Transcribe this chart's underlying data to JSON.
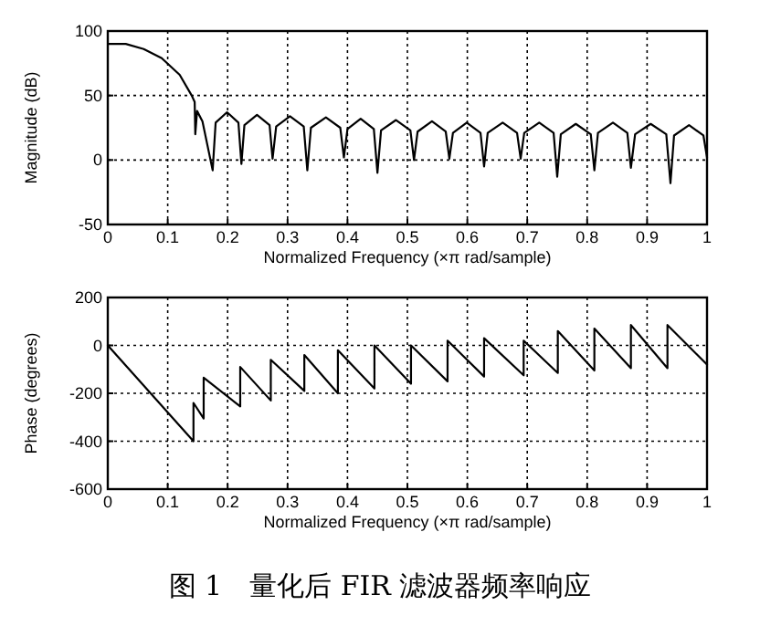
{
  "chart_data": [
    {
      "type": "line",
      "xlabel": "Normalized Frequency  (×π rad/sample)",
      "ylabel": "Magnitude (dB)",
      "color": "#000000",
      "line_style": "solid",
      "grid": true,
      "xlim": [
        0,
        1
      ],
      "ylim": [
        -50,
        100
      ],
      "xticks": [
        0,
        0.1,
        0.2,
        0.3,
        0.4,
        0.5,
        0.6,
        0.7,
        0.8,
        0.9,
        1
      ],
      "yticks": [
        -50,
        0,
        50,
        100
      ],
      "x": [
        0,
        0.03,
        0.06,
        0.09,
        0.12,
        0.14,
        0.145,
        0.146,
        0.149,
        0.158,
        0.175,
        0.18,
        0.199,
        0.218,
        0.223,
        0.228,
        0.249,
        0.27,
        0.275,
        0.281,
        0.304,
        0.327,
        0.333,
        0.339,
        0.364,
        0.388,
        0.394,
        0.4,
        0.422,
        0.444,
        0.45,
        0.456,
        0.481,
        0.505,
        0.511,
        0.517,
        0.541,
        0.564,
        0.57,
        0.576,
        0.599,
        0.622,
        0.628,
        0.634,
        0.659,
        0.683,
        0.689,
        0.695,
        0.72,
        0.744,
        0.75,
        0.756,
        0.781,
        0.806,
        0.812,
        0.818,
        0.843,
        0.867,
        0.873,
        0.88,
        0.906,
        0.932,
        0.939,
        0.945,
        0.97,
        0.994,
        1.0
      ],
      "values": [
        90,
        90,
        86,
        79,
        66,
        50,
        45,
        20,
        38,
        30,
        -8,
        29,
        37,
        29,
        -3,
        27,
        35,
        27,
        1,
        26,
        34,
        26,
        -8,
        25,
        33,
        25,
        2,
        24,
        32,
        24,
        -10,
        23,
        31,
        23,
        0,
        22,
        30,
        22,
        1,
        21,
        29,
        21,
        -5,
        21,
        29,
        21,
        1,
        21,
        29,
        21,
        -13,
        20,
        28,
        20,
        -8,
        21,
        29,
        21,
        -6,
        20,
        28,
        20,
        -18,
        19,
        27,
        19,
        2
      ]
    },
    {
      "type": "line",
      "xlabel": "Normalized Frequency  (×π rad/sample)",
      "ylabel": "Phase (degrees)",
      "color": "#000000",
      "line_style": "solid",
      "grid": true,
      "xlim": [
        0,
        1
      ],
      "ylim": [
        -600,
        200
      ],
      "xticks": [
        0,
        0.1,
        0.2,
        0.3,
        0.4,
        0.5,
        0.6,
        0.7,
        0.8,
        0.9,
        1
      ],
      "yticks": [
        -600,
        -400,
        -200,
        0,
        200
      ],
      "x": [
        0,
        0.143,
        0.143,
        0.16,
        0.16,
        0.221,
        0.221,
        0.272,
        0.272,
        0.328,
        0.328,
        0.384,
        0.384,
        0.445,
        0.445,
        0.506,
        0.506,
        0.567,
        0.567,
        0.628,
        0.628,
        0.694,
        0.694,
        0.751,
        0.751,
        0.812,
        0.812,
        0.873,
        0.873,
        0.934,
        0.934,
        1.0
      ],
      "values": [
        0,
        -400,
        -240,
        -305,
        -135,
        -255,
        -90,
        -230,
        -60,
        -190,
        -40,
        -200,
        -20,
        -180,
        0,
        -160,
        0,
        -150,
        20,
        -130,
        30,
        -125,
        20,
        -115,
        60,
        -105,
        70,
        -95,
        85,
        -95,
        85,
        -80
      ],
      "annotations": [
        "图 1　量化后 FIR 滤波器频率响应"
      ]
    }
  ]
}
